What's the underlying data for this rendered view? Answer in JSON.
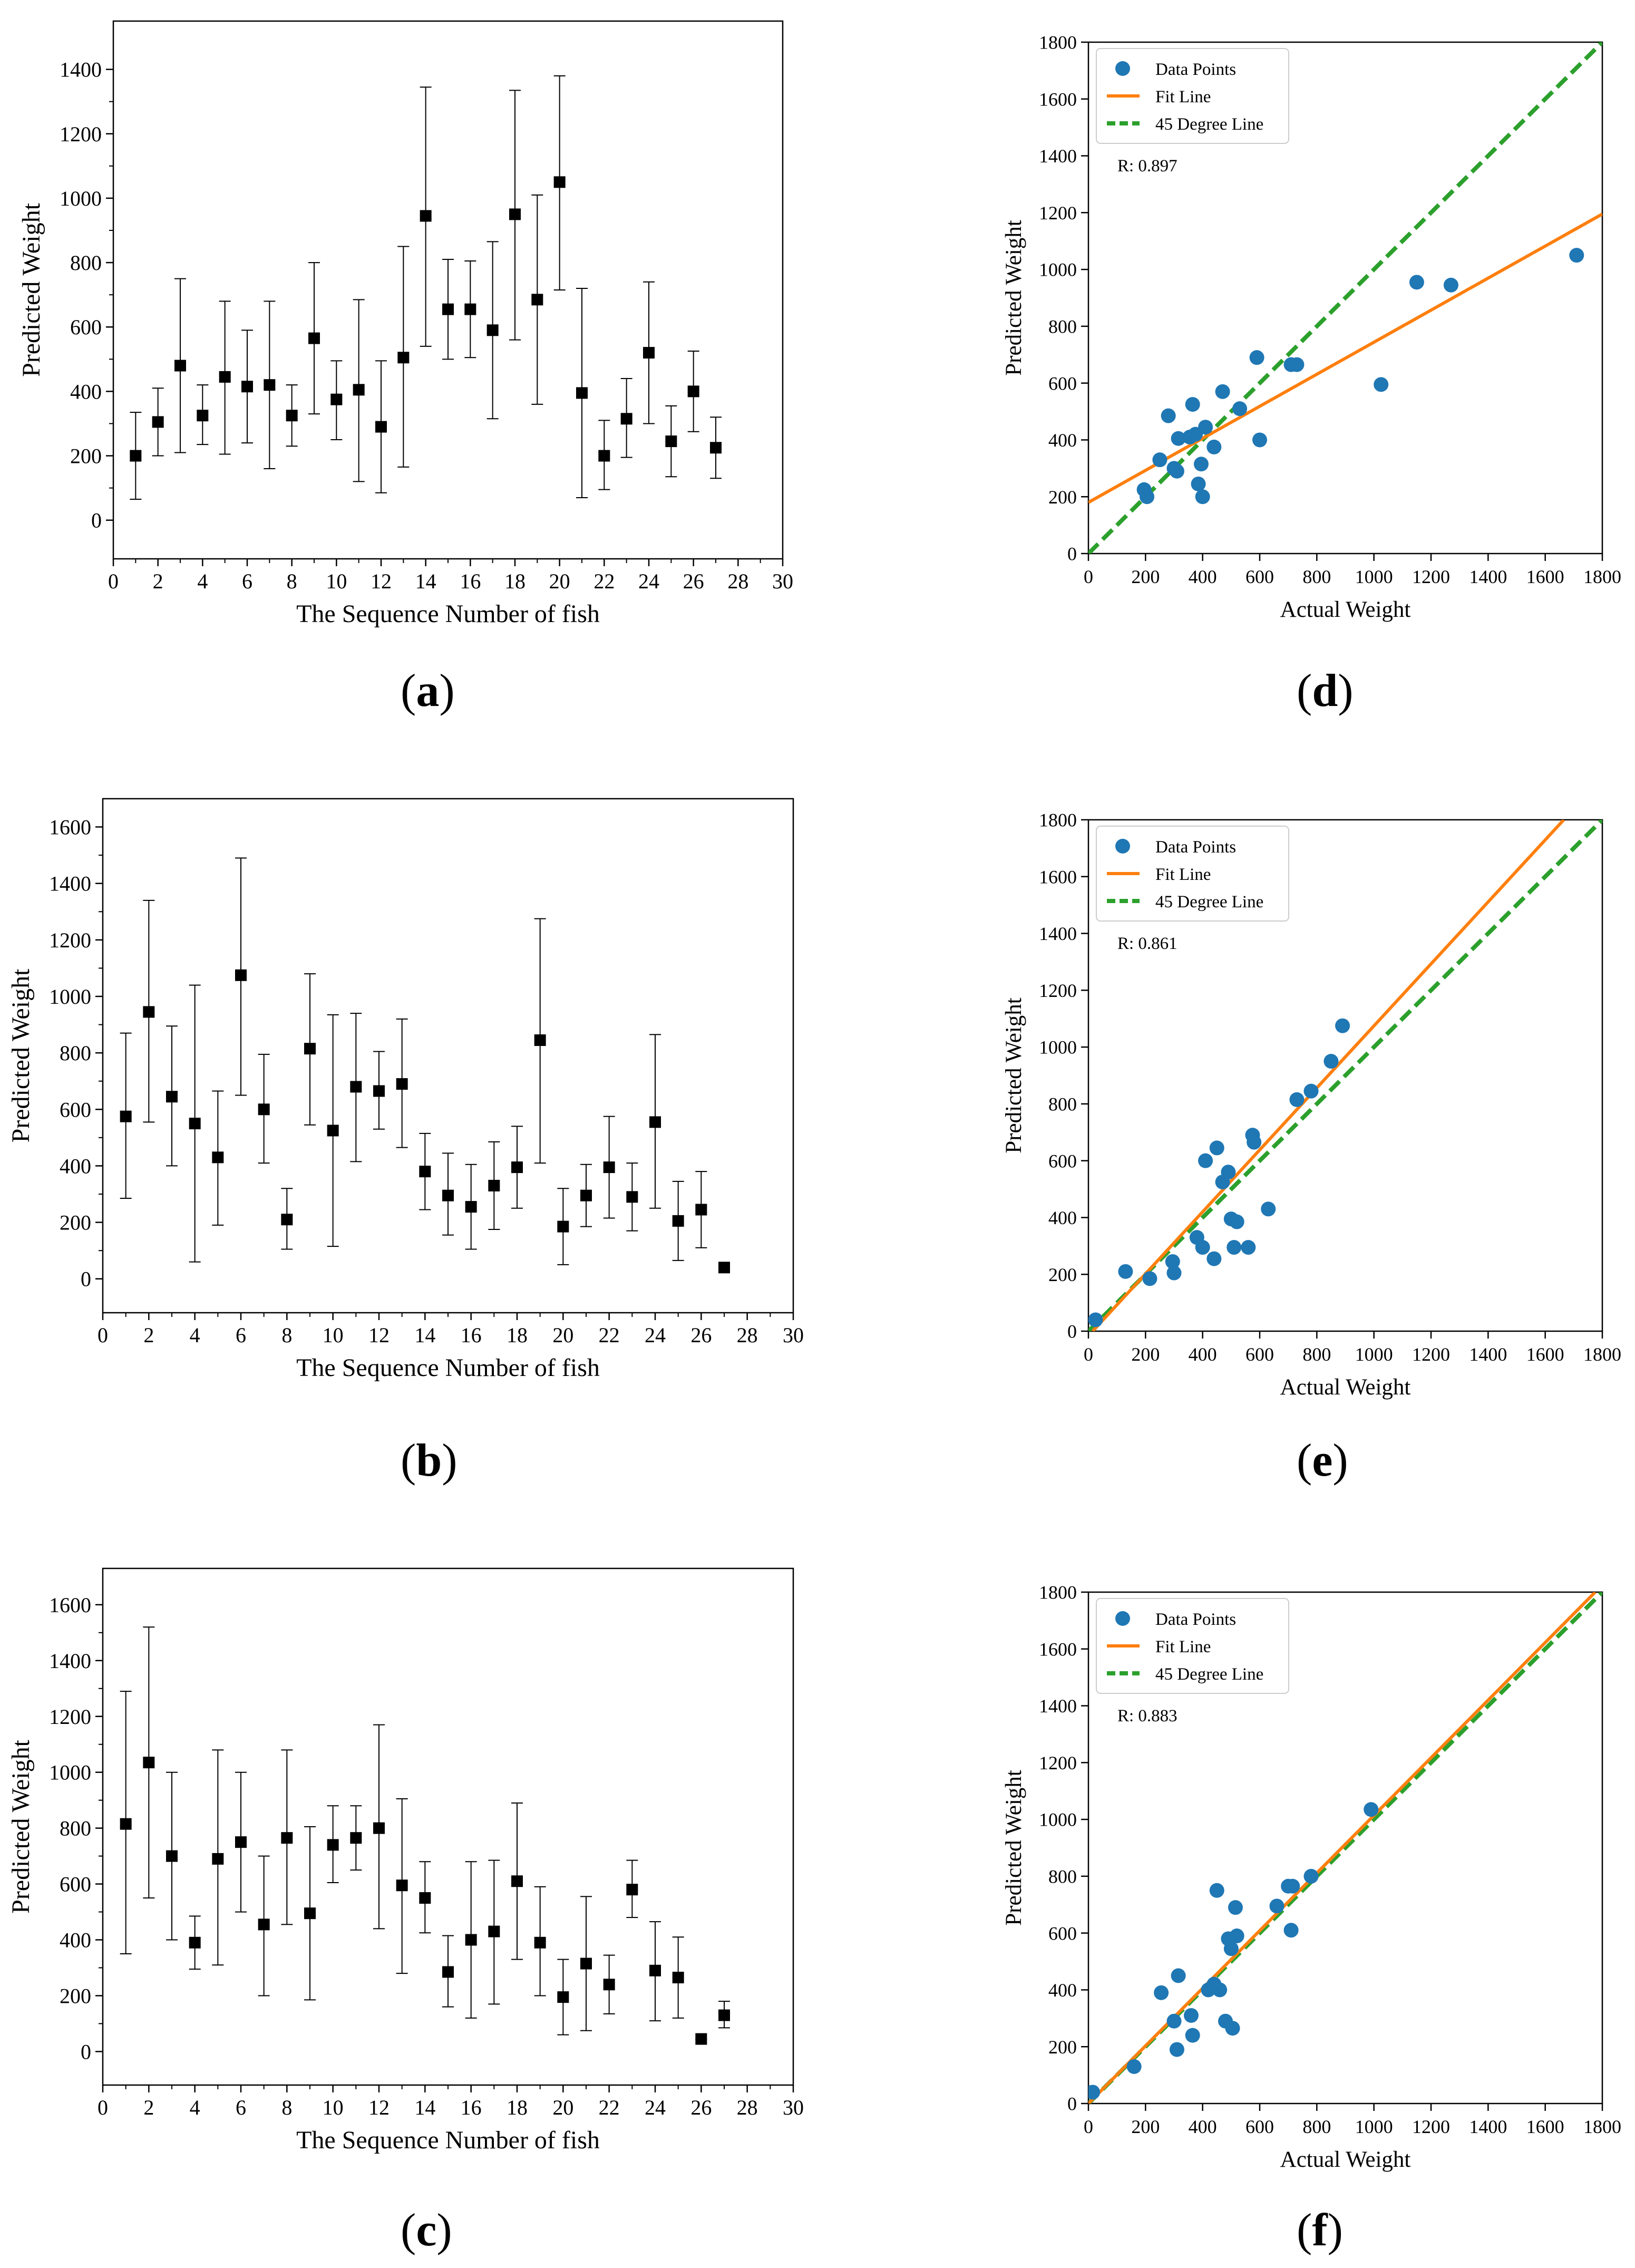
{
  "colors": {
    "marker": "#000000",
    "point": "#1f77b4",
    "fit_line": "#ff7f0e",
    "degree_line": "#2ca02c"
  },
  "chart_data": [
    {
      "id": "a",
      "panel_label": "a",
      "type": "scatter",
      "subtype": "errorbar",
      "title": "",
      "xlabel": "The Sequence Number of fish",
      "ylabel": "Predicted Weight",
      "xlim": [
        0,
        30
      ],
      "ylim": [
        -120,
        1550
      ],
      "xticks": [
        0,
        2,
        4,
        6,
        8,
        10,
        12,
        14,
        16,
        18,
        20,
        22,
        24,
        26,
        28,
        30
      ],
      "yticks": [
        0,
        200,
        400,
        600,
        800,
        1000,
        1200,
        1400
      ],
      "grid": false,
      "series": [
        {
          "name": "Predicted Weight",
          "x": [
            1,
            2,
            3,
            4,
            5,
            6,
            7,
            8,
            9,
            10,
            11,
            12,
            13,
            14,
            15,
            16,
            17,
            18,
            19,
            20,
            21,
            22,
            23,
            24,
            25,
            26,
            27
          ],
          "y": [
            200,
            305,
            480,
            325,
            445,
            415,
            420,
            325,
            565,
            375,
            405,
            290,
            505,
            945,
            655,
            655,
            590,
            950,
            685,
            1050,
            395,
            200,
            315,
            520,
            245,
            400,
            225
          ],
          "lower": [
            65,
            200,
            210,
            235,
            205,
            240,
            160,
            230,
            330,
            250,
            120,
            85,
            165,
            540,
            500,
            505,
            315,
            560,
            360,
            715,
            70,
            95,
            195,
            300,
            135,
            275,
            130
          ],
          "upper": [
            335,
            410,
            750,
            420,
            680,
            590,
            680,
            420,
            800,
            495,
            685,
            495,
            850,
            1345,
            810,
            805,
            865,
            1335,
            1010,
            1380,
            720,
            310,
            440,
            740,
            355,
            525,
            320
          ]
        }
      ]
    },
    {
      "id": "b",
      "panel_label": "b",
      "type": "scatter",
      "subtype": "errorbar",
      "title": "",
      "xlabel": "The Sequence Number of fish",
      "ylabel": "Predicted Weight",
      "xlim": [
        0,
        30
      ],
      "ylim": [
        -120,
        1700
      ],
      "xticks": [
        0,
        2,
        4,
        6,
        8,
        10,
        12,
        14,
        16,
        18,
        20,
        22,
        24,
        26,
        28,
        30
      ],
      "yticks": [
        0,
        200,
        400,
        600,
        800,
        1000,
        1200,
        1400,
        1600
      ],
      "grid": false,
      "series": [
        {
          "name": "Predicted Weight",
          "x": [
            1,
            2,
            3,
            4,
            5,
            6,
            7,
            8,
            9,
            10,
            11,
            12,
            13,
            14,
            15,
            16,
            17,
            18,
            19,
            20,
            21,
            22,
            23,
            24,
            25,
            26,
            27
          ],
          "y": [
            575,
            945,
            645,
            550,
            430,
            1075,
            600,
            210,
            815,
            525,
            680,
            665,
            690,
            380,
            295,
            255,
            330,
            395,
            845,
            185,
            295,
            395,
            290,
            555,
            205,
            245,
            40
          ],
          "lower": [
            285,
            555,
            400,
            60,
            190,
            650,
            410,
            105,
            545,
            115,
            415,
            530,
            465,
            245,
            155,
            105,
            175,
            250,
            410,
            50,
            185,
            215,
            170,
            250,
            65,
            110,
            40
          ],
          "upper": [
            870,
            1340,
            895,
            1040,
            665,
            1490,
            795,
            320,
            1080,
            935,
            940,
            805,
            920,
            515,
            445,
            405,
            485,
            540,
            1275,
            320,
            405,
            575,
            410,
            865,
            345,
            380,
            40
          ]
        }
      ]
    },
    {
      "id": "c",
      "panel_label": "c",
      "type": "scatter",
      "subtype": "errorbar",
      "title": "",
      "xlabel": "The Sequence Number of fish",
      "ylabel": "Predicted Weight",
      "xlim": [
        0,
        30
      ],
      "ylim": [
        -120,
        1730
      ],
      "xticks": [
        0,
        2,
        4,
        6,
        8,
        10,
        12,
        14,
        16,
        18,
        20,
        22,
        24,
        26,
        28,
        30
      ],
      "yticks": [
        0,
        200,
        400,
        600,
        800,
        1000,
        1200,
        1400,
        1600
      ],
      "grid": false,
      "series": [
        {
          "name": "Predicted Weight",
          "x": [
            1,
            2,
            3,
            4,
            5,
            6,
            7,
            8,
            9,
            10,
            11,
            12,
            13,
            14,
            15,
            16,
            17,
            18,
            19,
            20,
            21,
            22,
            23,
            24,
            25,
            26,
            27
          ],
          "y": [
            815,
            1035,
            700,
            390,
            690,
            750,
            455,
            765,
            495,
            740,
            765,
            800,
            595,
            550,
            285,
            400,
            430,
            610,
            390,
            195,
            315,
            240,
            580,
            290,
            265,
            45,
            130
          ],
          "lower": [
            350,
            550,
            400,
            295,
            310,
            500,
            200,
            455,
            185,
            605,
            650,
            440,
            280,
            425,
            160,
            120,
            170,
            330,
            200,
            60,
            75,
            135,
            480,
            110,
            120,
            45,
            85
          ],
          "upper": [
            1290,
            1520,
            1000,
            485,
            1080,
            1000,
            700,
            1080,
            805,
            880,
            880,
            1170,
            905,
            680,
            415,
            680,
            685,
            890,
            590,
            330,
            555,
            345,
            685,
            465,
            410,
            45,
            180
          ]
        }
      ]
    },
    {
      "id": "d",
      "panel_label": "d",
      "type": "scatter",
      "title": "",
      "xlabel": "Actual Weight",
      "ylabel": "Predicted Weight",
      "xlim": [
        0,
        1800
      ],
      "ylim": [
        0,
        1800
      ],
      "xticks": [
        0,
        200,
        400,
        600,
        800,
        1000,
        1200,
        1400,
        1600,
        1800
      ],
      "yticks": [
        0,
        200,
        400,
        600,
        800,
        1000,
        1200,
        1400,
        1600,
        1800
      ],
      "grid": false,
      "legend_position": "top-left",
      "annotation": "R: 0.897",
      "series": [
        {
          "name": "Data Points",
          "x": [
            195,
            205,
            250,
            280,
            300,
            310,
            315,
            355,
            365,
            375,
            385,
            395,
            400,
            410,
            440,
            470,
            530,
            590,
            600,
            710,
            730,
            1025,
            1150,
            1270,
            1710
          ],
          "y": [
            225,
            200,
            330,
            485,
            300,
            290,
            405,
            410,
            525,
            420,
            245,
            315,
            200,
            445,
            375,
            570,
            510,
            690,
            400,
            665,
            665,
            595,
            955,
            945,
            1050
          ]
        },
        {
          "name": "Fit Line",
          "x": [
            0,
            1800
          ],
          "y": [
            180,
            1195
          ]
        },
        {
          "name": "45 Degree Line",
          "x": [
            0,
            1800
          ],
          "y": [
            0,
            1800
          ]
        }
      ]
    },
    {
      "id": "e",
      "panel_label": "e",
      "type": "scatter",
      "title": "",
      "xlabel": "Actual Weight",
      "ylabel": "Predicted Weight",
      "xlim": [
        0,
        1800
      ],
      "ylim": [
        0,
        1800
      ],
      "xticks": [
        0,
        200,
        400,
        600,
        800,
        1000,
        1200,
        1400,
        1600,
        1800
      ],
      "yticks": [
        0,
        200,
        400,
        600,
        800,
        1000,
        1200,
        1400,
        1600,
        1800
      ],
      "grid": false,
      "legend_position": "top-left",
      "annotation": "R: 0.861",
      "series": [
        {
          "name": "Data Points",
          "x": [
            25,
            130,
            215,
            295,
            300,
            380,
            400,
            410,
            440,
            450,
            470,
            490,
            500,
            510,
            520,
            560,
            575,
            580,
            630,
            730,
            780,
            850,
            890
          ],
          "y": [
            40,
            210,
            185,
            245,
            205,
            330,
            295,
            600,
            255,
            645,
            525,
            560,
            395,
            295,
            385,
            295,
            690,
            665,
            430,
            815,
            845,
            950,
            1075
          ]
        },
        {
          "name": "Fit Line",
          "x": [
            15,
            1665
          ],
          "y": [
            0,
            1800
          ]
        },
        {
          "name": "45 Degree Line",
          "x": [
            0,
            1800
          ],
          "y": [
            0,
            1800
          ]
        }
      ]
    },
    {
      "id": "f",
      "panel_label": "f",
      "type": "scatter",
      "title": "",
      "xlabel": "Actual Weight",
      "ylabel": "Predicted Weight",
      "xlim": [
        0,
        1800
      ],
      "ylim": [
        0,
        1800
      ],
      "xticks": [
        0,
        200,
        400,
        600,
        800,
        1000,
        1200,
        1400,
        1600,
        1800
      ],
      "yticks": [
        0,
        200,
        400,
        600,
        800,
        1000,
        1200,
        1400,
        1600,
        1800
      ],
      "grid": false,
      "legend_position": "top-left",
      "annotation": "R: 0.883",
      "series": [
        {
          "name": "Data Points",
          "x": [
            15,
            160,
            255,
            300,
            310,
            315,
            360,
            365,
            420,
            440,
            450,
            460,
            480,
            490,
            500,
            505,
            515,
            520,
            660,
            700,
            710,
            715,
            780,
            990
          ],
          "y": [
            40,
            130,
            390,
            290,
            190,
            450,
            310,
            240,
            400,
            420,
            750,
            400,
            290,
            580,
            545,
            265,
            690,
            590,
            695,
            765,
            610,
            765,
            800,
            1035
          ]
        },
        {
          "name": "Fit Line",
          "x": [
            0,
            1775
          ],
          "y": [
            0,
            1800
          ]
        },
        {
          "name": "45 Degree Line",
          "x": [
            0,
            1800
          ],
          "y": [
            0,
            1800
          ]
        }
      ]
    }
  ]
}
